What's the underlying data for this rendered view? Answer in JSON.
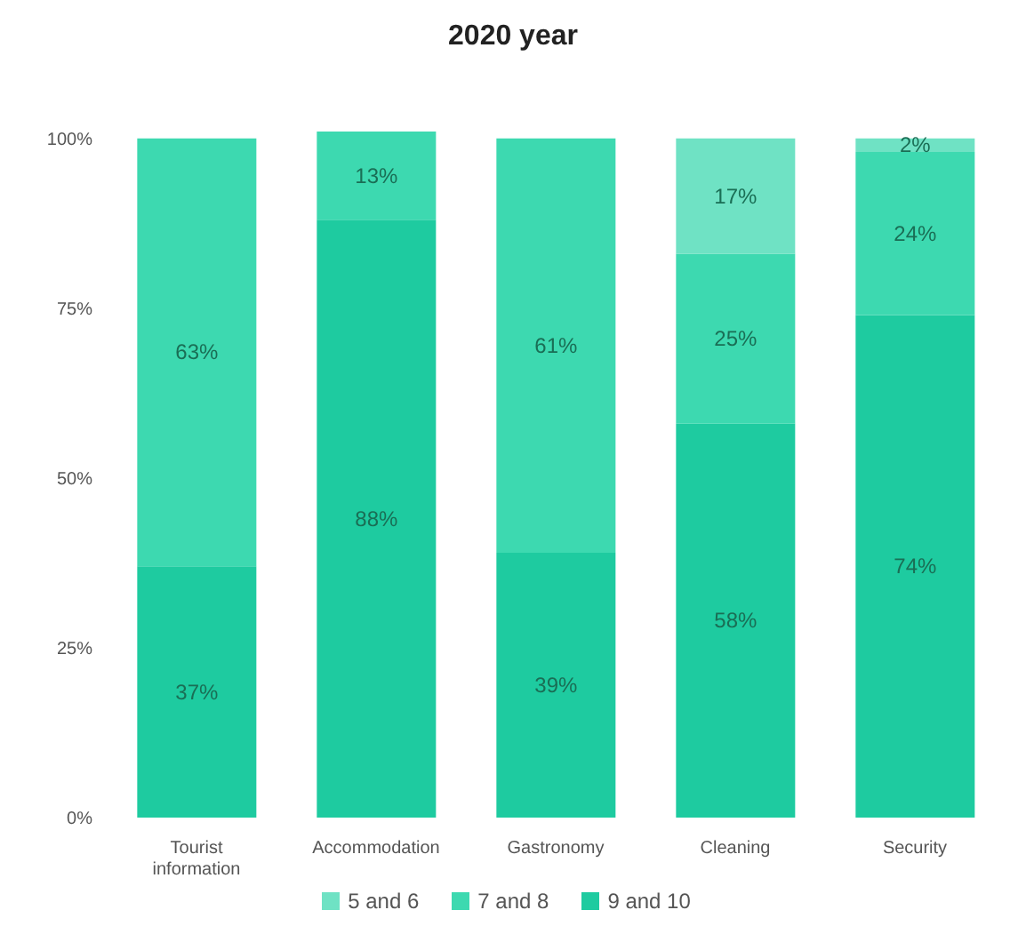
{
  "chart_data": {
    "type": "bar",
    "title": "2020 year",
    "stacked": true,
    "categories": [
      "Tourist information",
      "Accommodation",
      "Gastronomy",
      "Cleaning",
      "Security"
    ],
    "series": [
      {
        "name": "9 and 10",
        "color": "#1ecba0",
        "values": [
          37,
          88,
          39,
          58,
          74
        ],
        "value_labels": [
          "37%",
          "88%",
          "39%",
          "58%",
          "74%"
        ]
      },
      {
        "name": "7 and 8",
        "color": "#3dd9b0",
        "values": [
          63,
          13,
          61,
          25,
          24
        ],
        "value_labels": [
          "63%",
          "13%",
          "61%",
          "25%",
          "24%"
        ]
      },
      {
        "name": "5 and 6",
        "color": "#6fe2c4",
        "values": [
          null,
          null,
          null,
          17,
          2
        ],
        "value_labels": [
          null,
          null,
          null,
          "17%",
          "2%"
        ]
      }
    ],
    "ylim": [
      0,
      101
    ],
    "yticks": [
      {
        "value": 0,
        "label": "0%"
      },
      {
        "value": 25,
        "label": "25%"
      },
      {
        "value": 50,
        "label": "50%"
      },
      {
        "value": 75,
        "label": "75%"
      },
      {
        "value": 100,
        "label": "100%"
      }
    ],
    "grid": false,
    "legend": "bottom"
  }
}
